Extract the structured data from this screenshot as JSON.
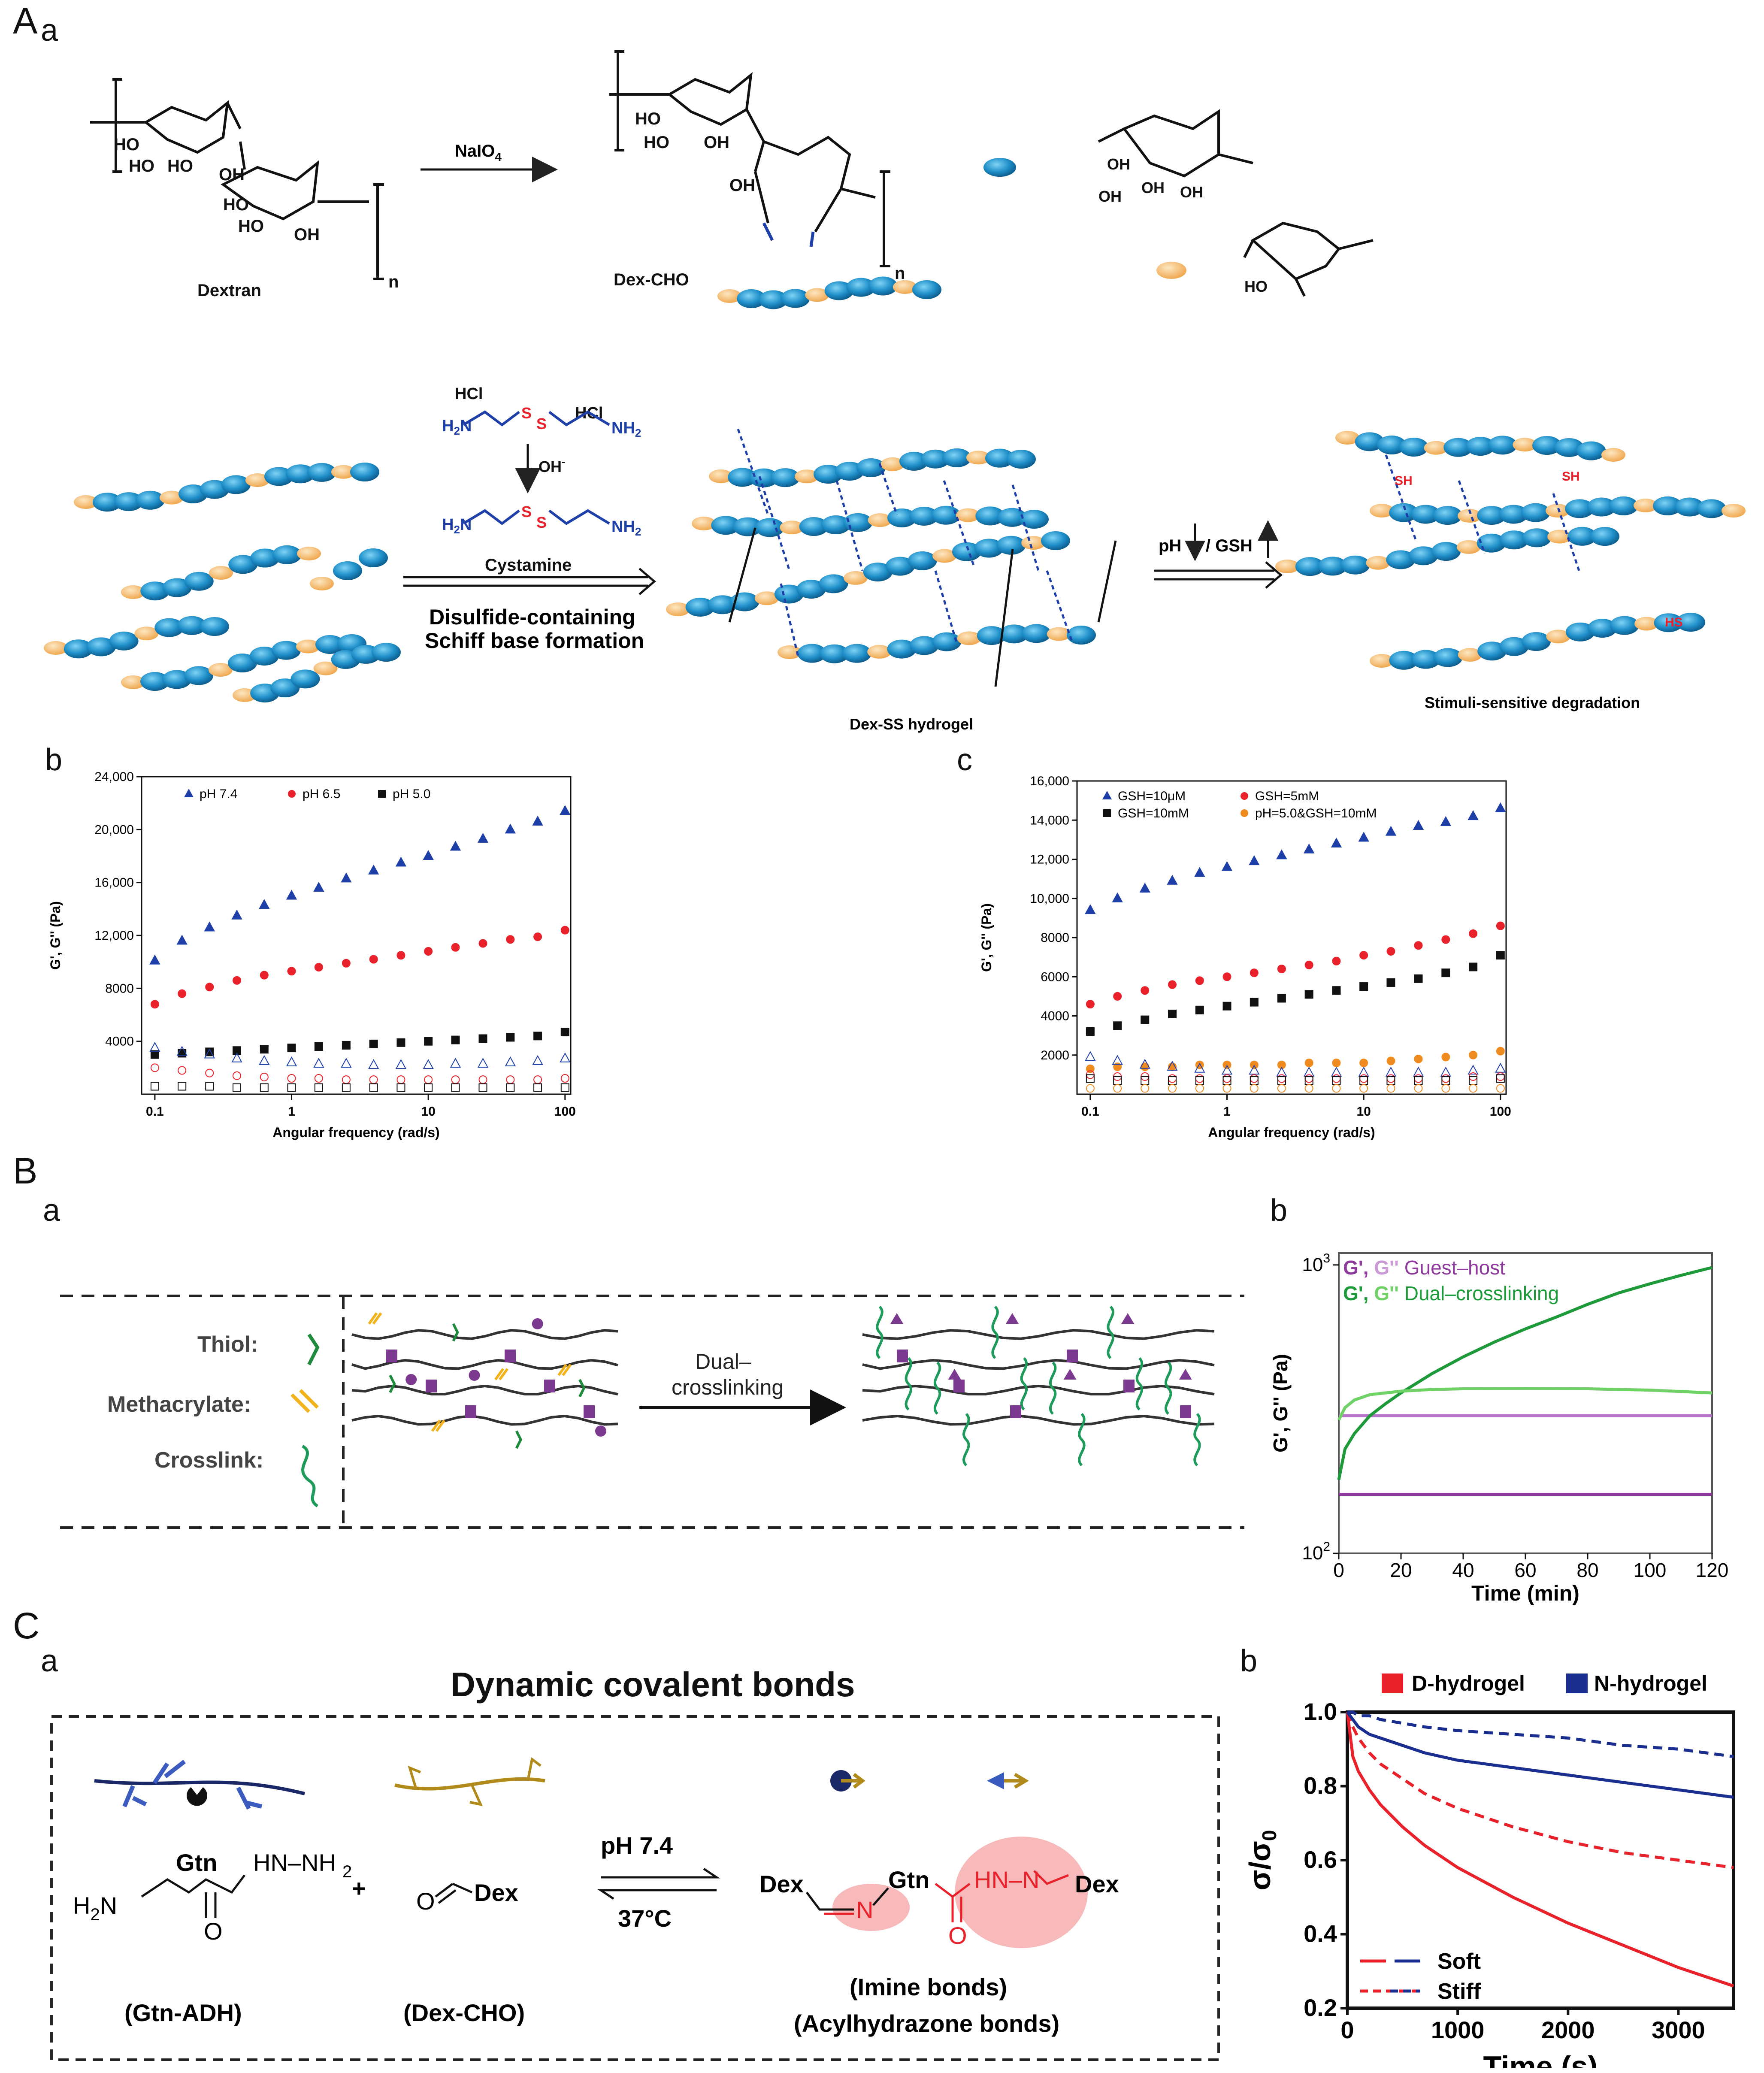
{
  "panels": {
    "A": "A",
    "B": "B",
    "C": "C",
    "a": "a",
    "b": "b",
    "c": "c"
  },
  "A_a": {
    "reagent": "NaIO",
    "reagent_sub": "4",
    "dextran": "Dextran",
    "dexcho": "Dex-CHO",
    "n": "n",
    "hcl": "HCl",
    "oh": "OH",
    "cystamine": "Cystamine",
    "step1": "Disulfide-containing",
    "step2": "Schiff base formation",
    "hydrogel": "Dex-SS hydrogel",
    "trigger_ph": "pH",
    "trigger_gsh": "/ GSH",
    "degradation": "Stimuli-sensitive degradation",
    "ho": "HO",
    "ohg": "OH"
  },
  "A_b": {
    "chart_data": {
      "type": "scatter",
      "xlabel": "Angular frequency (rad/s)",
      "ylabel": "G', G'' (Pa)",
      "xscale": "log",
      "xlim": [
        0.08,
        110
      ],
      "ylim": [
        0,
        24000
      ],
      "yticks": [
        "4000",
        "8000",
        "12,000",
        "16,000",
        "20,000",
        "24,000"
      ],
      "xticks": [
        "0.1",
        "1",
        "10",
        "100"
      ],
      "legend": [
        "pH 7.4",
        "pH 6.5",
        "pH 5.0"
      ],
      "x": [
        0.1,
        0.158,
        0.251,
        0.398,
        0.631,
        1,
        1.58,
        2.51,
        3.98,
        6.31,
        10,
        15.8,
        25.1,
        39.8,
        63.1,
        100
      ],
      "series": [
        {
          "name": "pH 7.4",
          "marker": "triangle",
          "color": "#1f3fa8",
          "filled": true,
          "values": [
            10100,
            11600,
            12600,
            13500,
            14300,
            15000,
            15600,
            16300,
            16900,
            17500,
            18000,
            18700,
            19300,
            20000,
            20600,
            21400
          ]
        },
        {
          "name": "pH 6.5",
          "marker": "circle",
          "color": "#e8212b",
          "filled": true,
          "values": [
            6800,
            7600,
            8100,
            8600,
            9000,
            9300,
            9600,
            9900,
            10200,
            10500,
            10800,
            11100,
            11400,
            11700,
            11900,
            12400
          ]
        },
        {
          "name": "pH 5.0",
          "marker": "square",
          "color": "#111111",
          "filled": true,
          "values": [
            3000,
            3100,
            3200,
            3300,
            3400,
            3500,
            3600,
            3700,
            3800,
            3900,
            4000,
            4100,
            4200,
            4300,
            4400,
            4700
          ]
        },
        {
          "name": "pH 7.4",
          "marker": "triangle",
          "color": "#1f3fa8",
          "filled": false,
          "values": [
            3500,
            3200,
            3000,
            2700,
            2500,
            2400,
            2300,
            2300,
            2200,
            2200,
            2200,
            2300,
            2300,
            2400,
            2500,
            2700
          ]
        },
        {
          "name": "pH 6.5",
          "marker": "circle",
          "color": "#e8212b",
          "filled": false,
          "values": [
            2000,
            1800,
            1600,
            1400,
            1300,
            1200,
            1200,
            1100,
            1100,
            1100,
            1100,
            1100,
            1100,
            1100,
            1100,
            1200
          ]
        },
        {
          "name": "pH 5.0",
          "marker": "square",
          "color": "#111111",
          "filled": false,
          "values": [
            600,
            600,
            600,
            500,
            500,
            500,
            500,
            500,
            500,
            500,
            500,
            500,
            500,
            500,
            500,
            500
          ]
        }
      ]
    }
  },
  "A_c": {
    "chart_data": {
      "type": "scatter",
      "xlabel": "Angular frequency (rad/s)",
      "ylabel": "G', G'' (Pa)",
      "xscale": "log",
      "xlim": [
        0.08,
        110
      ],
      "ylim": [
        0,
        16000
      ],
      "yticks": [
        "2000",
        "4000",
        "6000",
        "8000",
        "10,000",
        "12,000",
        "14,000",
        "16,000"
      ],
      "xticks": [
        "0.1",
        "1",
        "10",
        "100"
      ],
      "legend": [
        "GSH=10μM",
        "GSH=5mM",
        "GSH=10mM",
        "pH=5.0&GSH=10mM"
      ],
      "x": [
        0.1,
        0.158,
        0.251,
        0.398,
        0.631,
        1,
        1.58,
        2.51,
        3.98,
        6.31,
        10,
        15.8,
        25.1,
        39.8,
        63.1,
        100
      ],
      "series": [
        {
          "name": "GSH=10μM",
          "marker": "triangle",
          "color": "#1f3fa8",
          "filled": true,
          "values": [
            9400,
            10000,
            10500,
            10900,
            11300,
            11600,
            11900,
            12200,
            12500,
            12800,
            13100,
            13400,
            13700,
            13900,
            14200,
            14600
          ]
        },
        {
          "name": "GSH=5mM",
          "marker": "circle",
          "color": "#e8212b",
          "filled": true,
          "values": [
            4600,
            5000,
            5300,
            5600,
            5800,
            6000,
            6200,
            6400,
            6600,
            6800,
            7100,
            7300,
            7600,
            7900,
            8200,
            8600
          ]
        },
        {
          "name": "GSH=10mM",
          "marker": "square",
          "color": "#111111",
          "filled": true,
          "values": [
            3200,
            3500,
            3800,
            4100,
            4300,
            4500,
            4700,
            4900,
            5100,
            5300,
            5500,
            5700,
            5900,
            6200,
            6500,
            7100
          ]
        },
        {
          "name": "pH=5.0&GSH=10mM",
          "marker": "circle",
          "color": "#f08c1f",
          "filled": true,
          "values": [
            1300,
            1400,
            1400,
            1400,
            1500,
            1500,
            1500,
            1500,
            1600,
            1600,
            1600,
            1700,
            1800,
            1900,
            2000,
            2200
          ]
        },
        {
          "name": "GSH=10μM",
          "marker": "triangle",
          "color": "#1f3fa8",
          "filled": false,
          "values": [
            1900,
            1700,
            1500,
            1400,
            1300,
            1200,
            1200,
            1100,
            1100,
            1100,
            1100,
            1100,
            1100,
            1100,
            1200,
            1300
          ]
        },
        {
          "name": "GSH=5mM",
          "marker": "circle",
          "color": "#e8212b",
          "filled": false,
          "values": [
            1000,
            900,
            900,
            800,
            800,
            800,
            800,
            800,
            800,
            800,
            800,
            800,
            800,
            800,
            900,
            900
          ]
        },
        {
          "name": "GSH=10mM",
          "marker": "square",
          "color": "#111111",
          "filled": false,
          "values": [
            800,
            700,
            700,
            700,
            700,
            700,
            700,
            700,
            700,
            700,
            700,
            700,
            700,
            700,
            700,
            800
          ]
        },
        {
          "name": "pH=5.0&GSH=10mM",
          "marker": "circle",
          "color": "#f08c1f",
          "filled": false,
          "values": [
            300,
            300,
            300,
            300,
            300,
            300,
            300,
            300,
            300,
            300,
            300,
            300,
            300,
            300,
            300,
            300
          ]
        }
      ]
    }
  },
  "B_a": {
    "thiol": "Thiol:",
    "methacrylate": "Methacrylate:",
    "crosslink": "Crosslink:",
    "arrow1": "Dual–",
    "arrow2": "crosslinking"
  },
  "B_b": {
    "chart_data": {
      "type": "line",
      "xlabel": "Time (min)",
      "ylabel": "G', G'' (Pa)",
      "yscale": "log",
      "xlim": [
        0,
        120
      ],
      "ylim": [
        100,
        1100
      ],
      "xticks": [
        "0",
        "20",
        "40",
        "60",
        "80",
        "100",
        "120"
      ],
      "yticks": [
        "10",
        "10"
      ],
      "ytick_exp": [
        "2",
        "3"
      ],
      "legend_gp": "G', ",
      "legend_gpp": "G''",
      "legend_gh": "Guest–host",
      "legend_dc": "Dual–crosslinking",
      "series": [
        {
          "name": "Guest–host",
          "type": "G'",
          "color": "#b574c6",
          "x": [
            0,
            120
          ],
          "values": [
            300,
            300
          ]
        },
        {
          "name": "Guest–host",
          "type": "G''",
          "color": "#8e3a9c",
          "x": [
            0,
            120
          ],
          "values": [
            160,
            160
          ]
        },
        {
          "name": "Dual–crosslinking",
          "type": "G'",
          "color": "#1e9a3b",
          "x": [
            0,
            2,
            5,
            10,
            15,
            20,
            30,
            40,
            50,
            60,
            70,
            80,
            90,
            100,
            110,
            120
          ],
          "values": [
            180,
            230,
            260,
            300,
            330,
            360,
            420,
            480,
            540,
            600,
            660,
            730,
            800,
            860,
            920,
            980
          ]
        },
        {
          "name": "Dual–crosslinking",
          "type": "G''",
          "color": "#6fd166",
          "x": [
            0,
            2,
            5,
            10,
            20,
            30,
            40,
            60,
            80,
            100,
            120
          ],
          "values": [
            290,
            320,
            340,
            355,
            365,
            370,
            372,
            373,
            372,
            368,
            360
          ]
        }
      ]
    }
  },
  "C_a": {
    "title": "Dynamic covalent bonds",
    "gtn": "Gtn",
    "hn": "HN–NH",
    "two": "2",
    "h2n": "H",
    "n_sym": "N",
    "o_sym": "O",
    "plus": "+",
    "dex": "Dex",
    "ph": "pH 7.4",
    "temp": "37°C",
    "gtnadh": "(Gtn-ADH)",
    "dexcho": "(Dex-CHO)",
    "imine": "(Imine bonds)",
    "acyl": "(Acylhydrazone bonds)"
  },
  "C_b": {
    "chart_data": {
      "type": "line",
      "xlabel": "Time (s)",
      "ylabel": "σ/σ",
      "ylabel_sub": "0",
      "xlim": [
        0,
        3500
      ],
      "ylim": [
        0.2,
        1.0
      ],
      "xticks": [
        "0",
        "1000",
        "2000",
        "3000"
      ],
      "yticks": [
        "0.2",
        "0.4",
        "0.6",
        "0.8",
        "1.0"
      ],
      "legend": [
        "D-hydrogel",
        "N-hydrogel"
      ],
      "style_legend": [
        "Soft",
        "Stiff"
      ],
      "x": [
        0,
        50,
        100,
        200,
        300,
        500,
        700,
        1000,
        1500,
        2000,
        2500,
        3000,
        3500
      ],
      "series": [
        {
          "name": "D-hydrogel",
          "style": "Soft",
          "color": "#e8212b",
          "dash": false,
          "values": [
            1.0,
            0.88,
            0.84,
            0.79,
            0.75,
            0.69,
            0.64,
            0.58,
            0.5,
            0.43,
            0.37,
            0.31,
            0.26
          ]
        },
        {
          "name": "D-hydrogel",
          "style": "Stiff",
          "color": "#e8212b",
          "dash": true,
          "values": [
            1.0,
            0.96,
            0.93,
            0.89,
            0.86,
            0.82,
            0.78,
            0.74,
            0.69,
            0.65,
            0.62,
            0.6,
            0.58
          ]
        },
        {
          "name": "N-hydrogel",
          "style": "Soft",
          "color": "#1a2e8f",
          "dash": false,
          "values": [
            1.0,
            0.98,
            0.96,
            0.94,
            0.93,
            0.91,
            0.89,
            0.87,
            0.85,
            0.83,
            0.81,
            0.79,
            0.77
          ]
        },
        {
          "name": "N-hydrogel",
          "style": "Stiff",
          "color": "#1a2e8f",
          "dash": true,
          "values": [
            1.0,
            1.0,
            0.99,
            0.99,
            0.98,
            0.97,
            0.96,
            0.95,
            0.94,
            0.93,
            0.91,
            0.9,
            0.88
          ]
        }
      ]
    }
  }
}
